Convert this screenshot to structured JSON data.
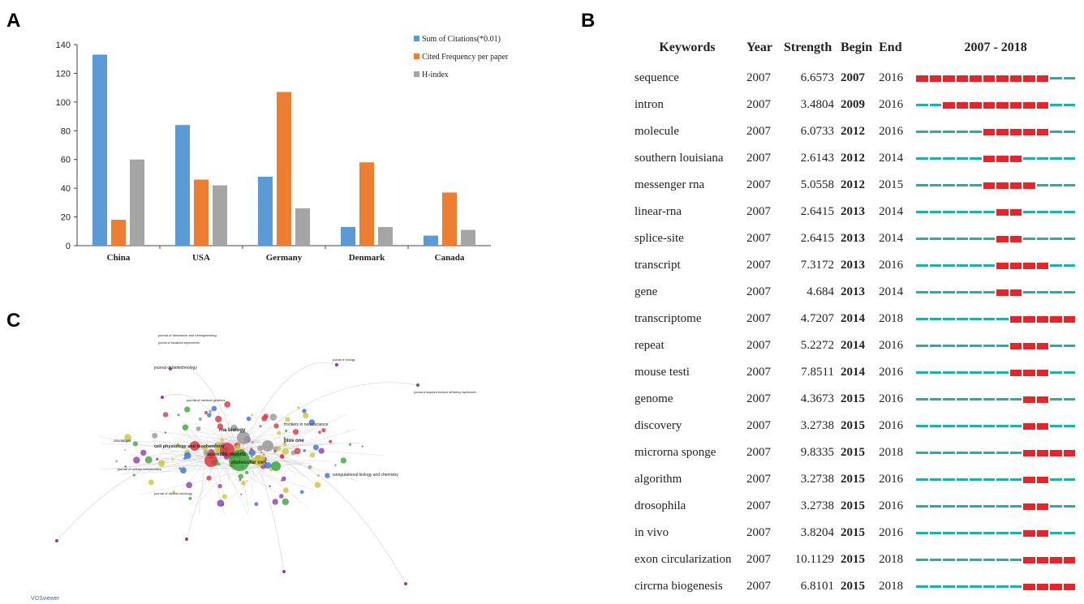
{
  "panels": {
    "a": "A",
    "b": "B",
    "c": "C"
  },
  "chart_data": [
    {
      "type": "bar",
      "categories": [
        "China",
        "USA",
        "Germany",
        "Denmark",
        "Canada"
      ],
      "series": [
        {
          "name": "Sum of Citations(*0.01)",
          "color": "#5b9bd5",
          "values": [
            133,
            84,
            48,
            13,
            7
          ]
        },
        {
          "name": "Cited Frequency per paper",
          "color": "#ed7d31",
          "values": [
            18,
            46,
            107,
            58,
            37
          ]
        },
        {
          "name": "H-index",
          "color": "#a5a5a5",
          "values": [
            60,
            42,
            26,
            13,
            11
          ]
        }
      ],
      "ylim": [
        0,
        140
      ],
      "yticks": [
        0,
        20,
        40,
        60,
        80,
        100,
        120,
        140
      ],
      "legend": "top-right",
      "grid": false
    },
    {
      "type": "table",
      "headers": {
        "keywords": "Keywords",
        "year": "Year",
        "strength": "Strength",
        "begin": "Begin",
        "end": "End",
        "range": "2007 - 2018"
      },
      "range_start": 2007,
      "range_end": 2018,
      "rows": [
        {
          "keyword": "sequence",
          "year": "2007",
          "strength": "6.6573",
          "begin": "2007",
          "end": "2016"
        },
        {
          "keyword": "intron",
          "year": "2007",
          "strength": "3.4804",
          "begin": "2009",
          "end": "2016"
        },
        {
          "keyword": "molecule",
          "year": "2007",
          "strength": "6.0733",
          "begin": "2012",
          "end": "2016"
        },
        {
          "keyword": "southern louisiana",
          "year": "2007",
          "strength": "2.6143",
          "begin": "2012",
          "end": "2014"
        },
        {
          "keyword": "messenger rna",
          "year": "2007",
          "strength": "5.0558",
          "begin": "2012",
          "end": "2015"
        },
        {
          "keyword": "linear-rna",
          "year": "2007",
          "strength": "2.6415",
          "begin": "2013",
          "end": "2014"
        },
        {
          "keyword": "splice-site",
          "year": "2007",
          "strength": "2.6415",
          "begin": "2013",
          "end": "2014"
        },
        {
          "keyword": "transcript",
          "year": "2007",
          "strength": "7.3172",
          "begin": "2013",
          "end": "2016"
        },
        {
          "keyword": "gene",
          "year": "2007",
          "strength": "4.684",
          "begin": "2013",
          "end": "2014"
        },
        {
          "keyword": "transcriptome",
          "year": "2007",
          "strength": "4.7207",
          "begin": "2014",
          "end": "2018"
        },
        {
          "keyword": "repeat",
          "year": "2007",
          "strength": "5.2272",
          "begin": "2014",
          "end": "2016"
        },
        {
          "keyword": "mouse testi",
          "year": "2007",
          "strength": "7.8511",
          "begin": "2014",
          "end": "2016"
        },
        {
          "keyword": "genome",
          "year": "2007",
          "strength": "4.3673",
          "begin": "2015",
          "end": "2016"
        },
        {
          "keyword": "discovery",
          "year": "2007",
          "strength": "3.2738",
          "begin": "2015",
          "end": "2016"
        },
        {
          "keyword": "microrna sponge",
          "year": "2007",
          "strength": "9.8335",
          "begin": "2015",
          "end": "2018"
        },
        {
          "keyword": "algorithm",
          "year": "2007",
          "strength": "3.2738",
          "begin": "2015",
          "end": "2016"
        },
        {
          "keyword": "drosophila",
          "year": "2007",
          "strength": "3.2738",
          "begin": "2015",
          "end": "2016"
        },
        {
          "keyword": "in vivo",
          "year": "2007",
          "strength": "3.8204",
          "begin": "2015",
          "end": "2016"
        },
        {
          "keyword": "exon circularization",
          "year": "2007",
          "strength": "10.1129",
          "begin": "2015",
          "end": "2018"
        },
        {
          "keyword": "circrna biogenesis",
          "year": "2007",
          "strength": "6.8101",
          "begin": "2015",
          "end": "2018"
        }
      ],
      "colors": {
        "burst": "#e8242b",
        "base": "#1ab3aa"
      }
    }
  ],
  "network": {
    "labels": [
      "journal of bioscience and bioengineering",
      "journal of visualized experiments",
      "journal of biotechnology",
      "molecular cell",
      "scientific reports",
      "plos one",
      "rna biology",
      "frontiers in neuroscience",
      "computational biology and chemistry",
      "journal of cellular biochemistry",
      "oncotarget",
      "cell physiology and biochemistry",
      "journal of clinical oncology",
      "journal of virology",
      "journal of medical genetics",
      "journal of acquired immune deficiency syndromes"
    ],
    "logo": "VOSviewer",
    "colors": {
      "red": "#d9363e",
      "green": "#3aa63a",
      "blue": "#3a6fd8",
      "purple": "#8b3fa8",
      "yellow": "#c8c83a",
      "gray": "#999999"
    }
  }
}
